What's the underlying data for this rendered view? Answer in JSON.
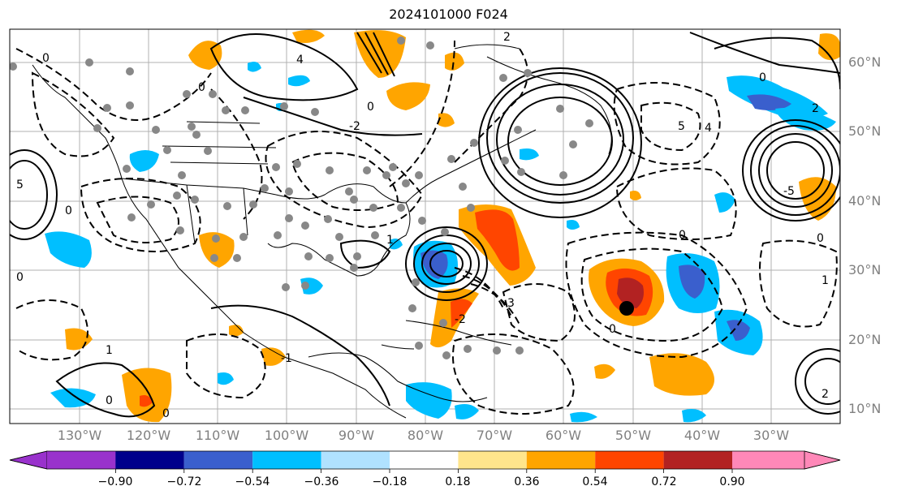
{
  "title": "2024101000 F024",
  "lat_labels": [
    "60°N",
    "50°N",
    "40°N",
    "30°N",
    "20°N",
    "10°N"
  ],
  "lon_labels": [
    "130°W",
    "120°W",
    "110°W",
    "100°W",
    "90°W",
    "80°W",
    "70°W",
    "60°W",
    "50°W",
    "40°W",
    "30°W"
  ],
  "colorbar": {
    "ticks": [
      "−0.90",
      "−0.72",
      "−0.54",
      "−0.36",
      "−0.18",
      "0.18",
      "0.36",
      "0.54",
      "0.72",
      "0.90"
    ],
    "colors": [
      "#9932cc",
      "#00008b",
      "#3a5fcd",
      "#00bfff",
      "#b0e2ff",
      "#ffffff",
      "#ffe58c",
      "#ffa500",
      "#ff4500",
      "#b22222",
      "#ff88b8"
    ]
  },
  "contour_labels": [
    "0",
    "1",
    "2",
    "3",
    "4",
    "5",
    "-1",
    "-2",
    "-3",
    "-5"
  ],
  "marker": {
    "name": "storm-center",
    "color": "#000000"
  }
}
